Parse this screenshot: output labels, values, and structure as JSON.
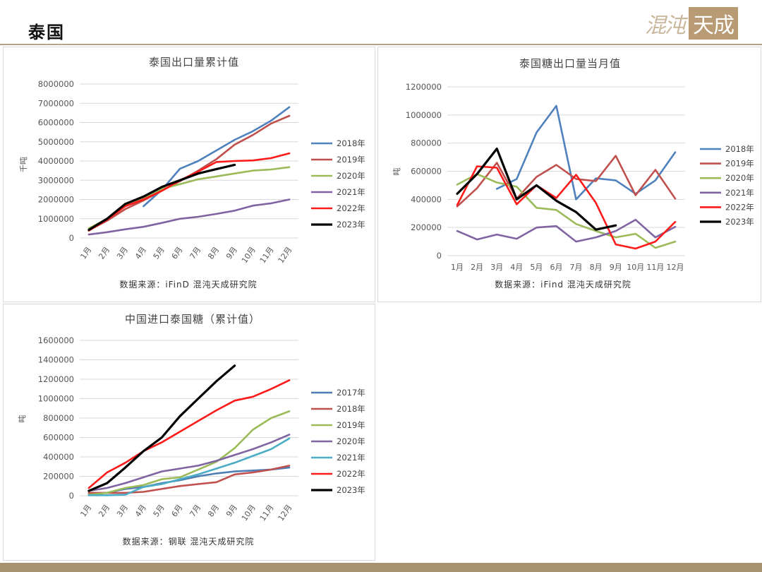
{
  "page": {
    "title": "泰国"
  },
  "logo": {
    "text": "混沌天成"
  },
  "colors": {
    "2017": "#4e7eb5",
    "2018": "#4f81bd",
    "2019": "#c0504d",
    "2020": "#9bbb59",
    "2021": "#8064a2",
    "2022": "#ff1a1a",
    "2023": "#000000",
    "2021_cyan": "#4bacc6",
    "2020_purple": "#8064a2",
    "2019_green": "#9bbb59"
  },
  "chart_data": [
    {
      "id": "c1",
      "type": "line",
      "title": "泰国出口量累计值",
      "ylabel": "千吨",
      "source": "数据来源：iFinD 混沌天成研究院",
      "categories": [
        "1月",
        "2月",
        "3月",
        "4月",
        "5月",
        "6月",
        "7月",
        "8月",
        "9月",
        "10月",
        "11月",
        "12月"
      ],
      "ylim": [
        0,
        8000000
      ],
      "yticks": [
        0,
        1000000,
        2000000,
        3000000,
        4000000,
        5000000,
        6000000,
        7000000,
        8000000
      ],
      "ytick_labels": [
        "0",
        "1000000",
        "2000000",
        "3000000",
        "4000000",
        "5000000",
        "6000000",
        "7000000",
        "8000000"
      ],
      "legend_position": "right",
      "series": [
        {
          "name": "2018年",
          "color": "#4f81bd",
          "values": [
            null,
            null,
            null,
            1650000,
            2500000,
            3600000,
            4000000,
            4550000,
            5100000,
            5550000,
            6100000,
            6800000
          ]
        },
        {
          "name": "2019年",
          "color": "#c0504d",
          "values": [
            400000,
            900000,
            1500000,
            1950000,
            2450000,
            2950000,
            3500000,
            4100000,
            4850000,
            5350000,
            5950000,
            6350000
          ]
        },
        {
          "name": "2020年",
          "color": "#9bbb59",
          "values": [
            500000,
            1000000,
            1750000,
            2100000,
            2550000,
            2800000,
            3050000,
            3200000,
            3350000,
            3500000,
            3560000,
            3680000
          ]
        },
        {
          "name": "2021年",
          "color": "#8064a2",
          "values": [
            180000,
            300000,
            450000,
            580000,
            780000,
            1000000,
            1100000,
            1250000,
            1420000,
            1680000,
            1800000,
            2000000
          ]
        },
        {
          "name": "2022年",
          "color": "#ff1a1a",
          "values": [
            380000,
            950000,
            1650000,
            2000000,
            2450000,
            3000000,
            3450000,
            3950000,
            4000000,
            4030000,
            4150000,
            4400000
          ]
        },
        {
          "name": "2023年",
          "color": "#000000",
          "values": [
            420000,
            1000000,
            1770000,
            2150000,
            2650000,
            3000000,
            3350000,
            3580000,
            3800000,
            null,
            null,
            null
          ]
        }
      ]
    },
    {
      "id": "c2",
      "type": "line",
      "title": "泰国糖出口量当月值",
      "ylabel": "吨",
      "source": "数据来源：iFind 混沌天成研究院",
      "categories": [
        "1月",
        "2月",
        "3月",
        "4月",
        "5月",
        "6月",
        "7月",
        "8月",
        "9月",
        "10月",
        "11月",
        "12月"
      ],
      "ylim": [
        0,
        1200000
      ],
      "yticks": [
        0,
        200000,
        400000,
        600000,
        800000,
        1000000,
        1200000
      ],
      "ytick_labels": [
        "0",
        "200000",
        "400000",
        "600000",
        "800000",
        "1000000",
        "1200000"
      ],
      "legend_position": "right",
      "series": [
        {
          "name": "2018年",
          "color": "#4f81bd",
          "values": [
            null,
            null,
            475000,
            545000,
            875000,
            1065000,
            400000,
            550000,
            535000,
            440000,
            535000,
            735000
          ]
        },
        {
          "name": "2019年",
          "color": "#c0504d",
          "values": [
            350000,
            480000,
            660000,
            405000,
            560000,
            645000,
            545000,
            530000,
            710000,
            430000,
            610000,
            405000
          ]
        },
        {
          "name": "2020年",
          "color": "#9bbb59",
          "values": [
            505000,
            580000,
            520000,
            490000,
            340000,
            325000,
            225000,
            175000,
            130000,
            155000,
            55000,
            100000
          ]
        },
        {
          "name": "2021年",
          "color": "#8064a2",
          "values": [
            175000,
            115000,
            150000,
            120000,
            200000,
            210000,
            100000,
            130000,
            175000,
            255000,
            130000,
            205000
          ]
        },
        {
          "name": "2022年",
          "color": "#ff1a1a",
          "values": [
            360000,
            635000,
            625000,
            365000,
            500000,
            410000,
            575000,
            375000,
            80000,
            50000,
            100000,
            240000
          ]
        },
        {
          "name": "2023年",
          "color": "#000000",
          "values": [
            440000,
            580000,
            760000,
            400000,
            500000,
            390000,
            310000,
            185000,
            215000,
            null,
            null,
            null
          ]
        }
      ]
    },
    {
      "id": "c3",
      "type": "line",
      "title": "中国进口泰国糖（累计值）",
      "ylabel": "吨",
      "source": "数据来源：钢联 混沌天成研究院",
      "categories": [
        "1月",
        "2月",
        "3月",
        "4月",
        "5月",
        "6月",
        "7月",
        "8月",
        "9月",
        "10月",
        "11月",
        "12月"
      ],
      "ylim": [
        0,
        1600000
      ],
      "yticks": [
        0,
        200000,
        400000,
        600000,
        800000,
        1000000,
        1200000,
        1400000,
        1600000
      ],
      "ytick_labels": [
        "0",
        "200000",
        "400000",
        "600000",
        "800000",
        "1000000",
        "1200000",
        "1400000",
        "1600000"
      ],
      "legend_position": "right",
      "series": [
        {
          "name": "2017年",
          "color": "#4e7eb5",
          "values": [
            20000,
            30000,
            70000,
            90000,
            130000,
            160000,
            200000,
            230000,
            250000,
            260000,
            270000,
            290000
          ]
        },
        {
          "name": "2018年",
          "color": "#c0504d",
          "values": [
            30000,
            30000,
            30000,
            40000,
            70000,
            100000,
            120000,
            140000,
            220000,
            240000,
            270000,
            310000
          ]
        },
        {
          "name": "2019年",
          "color": "#9bbb59",
          "values": [
            10000,
            30000,
            80000,
            110000,
            170000,
            190000,
            270000,
            350000,
            490000,
            680000,
            800000,
            870000
          ]
        },
        {
          "name": "2020年",
          "color": "#8064a2",
          "values": [
            50000,
            80000,
            130000,
            190000,
            250000,
            280000,
            310000,
            360000,
            420000,
            480000,
            550000,
            630000
          ]
        },
        {
          "name": "2021年",
          "color": "#4bacc6",
          "values": [
            5000,
            5000,
            10000,
            90000,
            120000,
            170000,
            220000,
            280000,
            340000,
            410000,
            480000,
            590000
          ]
        },
        {
          "name": "2022年",
          "color": "#ff1a1a",
          "values": [
            80000,
            240000,
            340000,
            460000,
            550000,
            660000,
            770000,
            880000,
            980000,
            1020000,
            1100000,
            1190000
          ]
        },
        {
          "name": "2023年",
          "color": "#000000",
          "values": [
            50000,
            130000,
            290000,
            460000,
            600000,
            820000,
            1000000,
            1180000,
            1340000,
            null,
            null,
            null
          ]
        }
      ]
    }
  ]
}
